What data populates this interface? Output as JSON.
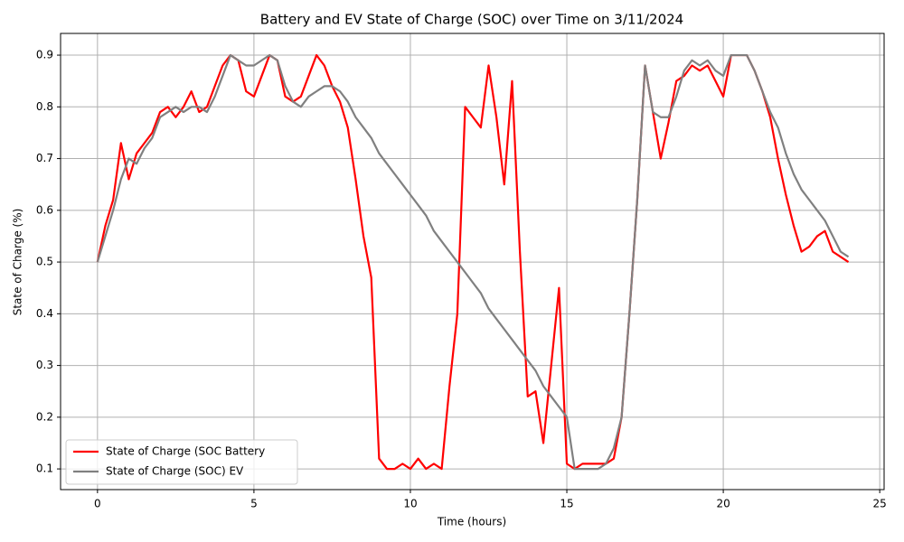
{
  "chart_data": {
    "type": "line",
    "title": "Battery and EV State of Charge (SOC) over Time on 3/11/2024",
    "xlabel": "Time (hours)",
    "ylabel": "State of Charge (%)",
    "x": [
      0,
      0.25,
      0.5,
      0.75,
      1,
      1.25,
      1.5,
      1.75,
      2,
      2.25,
      2.5,
      2.75,
      3,
      3.25,
      3.5,
      3.75,
      4,
      4.25,
      4.5,
      4.75,
      5,
      5.25,
      5.5,
      5.75,
      6,
      6.25,
      6.5,
      6.75,
      7,
      7.25,
      7.5,
      7.75,
      8,
      8.25,
      8.5,
      8.75,
      9,
      9.25,
      9.5,
      9.75,
      10,
      10.25,
      10.5,
      10.75,
      11,
      11.25,
      11.5,
      11.75,
      12,
      12.25,
      12.5,
      12.75,
      13,
      13.25,
      13.5,
      13.75,
      14,
      14.25,
      14.5,
      14.75,
      15,
      15.25,
      15.5,
      15.75,
      16,
      16.25,
      16.5,
      16.75,
      17,
      17.25,
      17.5,
      17.75,
      18,
      18.25,
      18.5,
      18.75,
      19,
      19.25,
      19.5,
      19.75,
      20,
      20.25,
      20.5,
      20.75,
      21,
      21.25,
      21.5,
      21.75,
      22,
      22.25,
      22.5,
      22.75,
      23,
      23.25,
      23.5,
      23.75,
      24
    ],
    "series": [
      {
        "name": "State of Charge (SOC Battery",
        "color": "#ff0000",
        "values": [
          0.5,
          0.57,
          0.62,
          0.73,
          0.66,
          0.71,
          0.73,
          0.75,
          0.79,
          0.8,
          0.78,
          0.8,
          0.83,
          0.79,
          0.8,
          0.84,
          0.88,
          0.9,
          0.89,
          0.83,
          0.82,
          0.86,
          0.9,
          0.89,
          0.82,
          0.81,
          0.82,
          0.86,
          0.9,
          0.88,
          0.84,
          0.81,
          0.76,
          0.66,
          0.55,
          0.47,
          0.12,
          0.1,
          0.1,
          0.11,
          0.1,
          0.12,
          0.1,
          0.11,
          0.1,
          0.26,
          0.4,
          0.8,
          0.78,
          0.76,
          0.88,
          0.78,
          0.65,
          0.85,
          0.52,
          0.24,
          0.25,
          0.15,
          0.3,
          0.45,
          0.11,
          0.1,
          0.11,
          0.11,
          0.11,
          0.11,
          0.12,
          0.2,
          0.4,
          0.62,
          0.88,
          0.79,
          0.7,
          0.77,
          0.85,
          0.86,
          0.88,
          0.87,
          0.88,
          0.85,
          0.82,
          0.9,
          0.9,
          0.9,
          0.87,
          0.83,
          0.78,
          0.7,
          0.63,
          0.57,
          0.52,
          0.53,
          0.55,
          0.56,
          0.52,
          0.51,
          0.5
        ]
      },
      {
        "name": "State of Charge (SOC) EV",
        "color": "#808080",
        "values": [
          0.5,
          0.55,
          0.6,
          0.66,
          0.7,
          0.69,
          0.72,
          0.74,
          0.78,
          0.79,
          0.8,
          0.79,
          0.8,
          0.8,
          0.79,
          0.82,
          0.86,
          0.9,
          0.89,
          0.88,
          0.88,
          0.89,
          0.9,
          0.89,
          0.84,
          0.81,
          0.8,
          0.82,
          0.83,
          0.84,
          0.84,
          0.83,
          0.81,
          0.78,
          0.76,
          0.74,
          0.71,
          0.69,
          0.67,
          0.65,
          0.63,
          0.61,
          0.59,
          0.56,
          0.54,
          0.52,
          0.5,
          0.48,
          0.46,
          0.44,
          0.41,
          0.39,
          0.37,
          0.35,
          0.33,
          0.31,
          0.29,
          0.26,
          0.24,
          0.22,
          0.2,
          0.1,
          0.1,
          0.1,
          0.1,
          0.11,
          0.14,
          0.2,
          0.4,
          0.62,
          0.88,
          0.79,
          0.78,
          0.78,
          0.82,
          0.87,
          0.89,
          0.88,
          0.89,
          0.87,
          0.86,
          0.9,
          0.9,
          0.9,
          0.87,
          0.83,
          0.79,
          0.76,
          0.71,
          0.67,
          0.64,
          0.62,
          0.6,
          0.58,
          0.55,
          0.52,
          0.51
        ]
      }
    ],
    "xlim": [
      -1.18,
      25.14
    ],
    "xticks": [
      0,
      5,
      10,
      15,
      20,
      25
    ],
    "ylim": [
      0.06,
      0.942
    ],
    "yticks": [
      0.1,
      0.2,
      0.3,
      0.4,
      0.5,
      0.6,
      0.7,
      0.8,
      0.9
    ],
    "grid": true,
    "legend": "lower left"
  }
}
